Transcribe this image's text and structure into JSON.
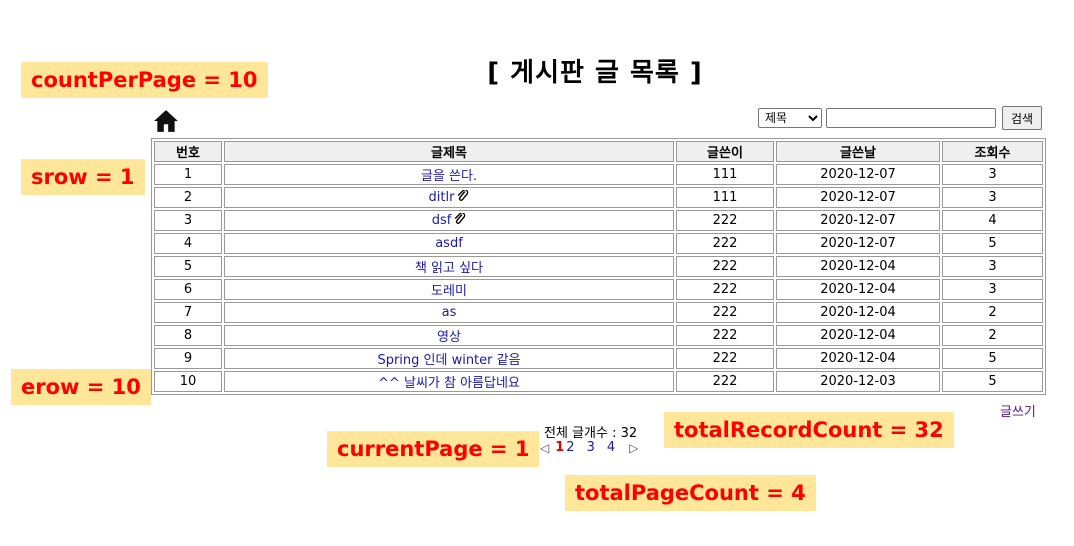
{
  "title": "[ 게시판 글 목록 ]",
  "search": {
    "field_selected": "제목",
    "input_value": "",
    "button_label": "검색"
  },
  "table": {
    "headers": [
      "번호",
      "글제목",
      "글쓴이",
      "글쓴날",
      "조회수"
    ],
    "rows": [
      {
        "no": "1",
        "subject": "글을 쓴다.",
        "attach": false,
        "writer": "111",
        "date": "2020-12-07",
        "hits": "3"
      },
      {
        "no": "2",
        "subject": "ditlr",
        "attach": true,
        "writer": "111",
        "date": "2020-12-07",
        "hits": "3"
      },
      {
        "no": "3",
        "subject": "dsf",
        "attach": true,
        "writer": "222",
        "date": "2020-12-07",
        "hits": "4"
      },
      {
        "no": "4",
        "subject": "asdf",
        "attach": false,
        "writer": "222",
        "date": "2020-12-07",
        "hits": "5"
      },
      {
        "no": "5",
        "subject": "책 읽고 싶다",
        "attach": false,
        "writer": "222",
        "date": "2020-12-04",
        "hits": "3"
      },
      {
        "no": "6",
        "subject": "도레미",
        "attach": false,
        "writer": "222",
        "date": "2020-12-04",
        "hits": "3"
      },
      {
        "no": "7",
        "subject": "as",
        "attach": false,
        "writer": "222",
        "date": "2020-12-04",
        "hits": "2"
      },
      {
        "no": "8",
        "subject": "영상",
        "attach": false,
        "writer": "222",
        "date": "2020-12-04",
        "hits": "2"
      },
      {
        "no": "9",
        "subject": "Spring 인데 winter 같음",
        "attach": false,
        "writer": "222",
        "date": "2020-12-04",
        "hits": "5"
      },
      {
        "no": "10",
        "subject": "^^ 날씨가 참 아름답네요",
        "attach": false,
        "writer": "222",
        "date": "2020-12-03",
        "hits": "5"
      }
    ]
  },
  "write_link": "글쓰기",
  "total_count_text": "전체 글개수 : 32",
  "pager": {
    "prev": "◁",
    "current": "1",
    "pages": [
      "2",
      "3",
      "4"
    ],
    "next": "▷"
  },
  "annotations": {
    "count_per_page": "countPerPage = 10",
    "srow": "srow = 1",
    "erow": "erow = 10",
    "current_page": "currentPage = 1",
    "total_record_count": "totalRecordCount = 32",
    "total_page_count": "totalPageCount = 4"
  },
  "colors": {
    "annotation_bg": "#ffe699",
    "annotation_text": "#ff0000",
    "link": "#1a1aa6",
    "visited_link": "#551a8b"
  },
  "icons": [
    "home-icon",
    "paperclip-icon",
    "dropdown-arrow-icon"
  ]
}
